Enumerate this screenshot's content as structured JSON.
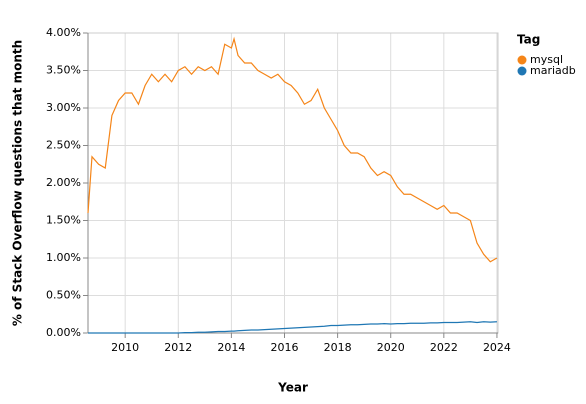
{
  "chart_data": {
    "type": "line",
    "x_label": "Year",
    "y_label": "% of Stack Overflow questions that month",
    "legend_title": "Tag",
    "legend": "right",
    "grid": true,
    "xlim": [
      2008.6,
      2024.04
    ],
    "xticks": [
      2010,
      2012,
      2014,
      2016,
      2018,
      2020,
      2022,
      2024
    ],
    "ylim": [
      0,
      4
    ],
    "yticks": [
      {
        "value": 0,
        "label": "0.00%"
      },
      {
        "value": 0.5,
        "label": "0.50%"
      },
      {
        "value": 1,
        "label": "1.00%"
      },
      {
        "value": 1.5,
        "label": "1.50%"
      },
      {
        "value": 2,
        "label": "2.00%"
      },
      {
        "value": 2.5,
        "label": "2.50%"
      },
      {
        "value": 3,
        "label": "3.00%"
      },
      {
        "value": 3.5,
        "label": "3.50%"
      },
      {
        "value": 4,
        "label": "4.00%"
      }
    ],
    "x": [
      2008.6,
      2008.75,
      2009,
      2009.25,
      2009.5,
      2009.75,
      2010,
      2010.25,
      2010.5,
      2010.75,
      2011,
      2011.25,
      2011.5,
      2011.75,
      2012,
      2012.25,
      2012.5,
      2012.75,
      2013,
      2013.25,
      2013.5,
      2013.75,
      2014,
      2014.1,
      2014.25,
      2014.5,
      2014.75,
      2015,
      2015.25,
      2015.5,
      2015.75,
      2016,
      2016.25,
      2016.5,
      2016.75,
      2017,
      2017.25,
      2017.5,
      2017.75,
      2018,
      2018.25,
      2018.5,
      2018.75,
      2019,
      2019.25,
      2019.5,
      2019.75,
      2020,
      2020.25,
      2020.5,
      2020.75,
      2021,
      2021.25,
      2021.5,
      2021.75,
      2022,
      2022.25,
      2022.5,
      2022.75,
      2023,
      2023.25,
      2023.5,
      2023.75,
      2024
    ],
    "series": [
      {
        "name": "mysql",
        "color": "#f58518",
        "values": [
          1.6,
          2.35,
          2.25,
          2.2,
          2.9,
          3.1,
          3.2,
          3.2,
          3.05,
          3.3,
          3.45,
          3.35,
          3.45,
          3.35,
          3.5,
          3.55,
          3.45,
          3.55,
          3.5,
          3.55,
          3.45,
          3.85,
          3.8,
          3.92,
          3.7,
          3.6,
          3.6,
          3.5,
          3.45,
          3.4,
          3.45,
          3.35,
          3.3,
          3.2,
          3.05,
          3.1,
          3.25,
          3.0,
          2.85,
          2.7,
          2.5,
          2.4,
          2.4,
          2.35,
          2.2,
          2.1,
          2.15,
          2.1,
          1.95,
          1.85,
          1.85,
          1.8,
          1.75,
          1.7,
          1.65,
          1.7,
          1.6,
          1.6,
          1.55,
          1.5,
          1.2,
          1.05,
          0.95,
          1.0
        ]
      },
      {
        "name": "mariadb",
        "color": "#1f77b4",
        "values": [
          0,
          0,
          0,
          0,
          0,
          0,
          0,
          0,
          0,
          0,
          0,
          0,
          0,
          0,
          0,
          0.005,
          0.005,
          0.01,
          0.01,
          0.015,
          0.02,
          0.02,
          0.025,
          0.025,
          0.03,
          0.035,
          0.04,
          0.04,
          0.045,
          0.05,
          0.055,
          0.06,
          0.065,
          0.07,
          0.075,
          0.08,
          0.085,
          0.09,
          0.1,
          0.1,
          0.105,
          0.11,
          0.11,
          0.115,
          0.12,
          0.12,
          0.125,
          0.12,
          0.125,
          0.125,
          0.13,
          0.13,
          0.13,
          0.135,
          0.135,
          0.14,
          0.14,
          0.14,
          0.145,
          0.15,
          0.14,
          0.15,
          0.145,
          0.15
        ]
      }
    ]
  }
}
